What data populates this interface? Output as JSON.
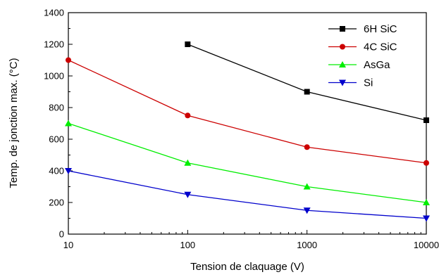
{
  "chart_data": {
    "type": "line",
    "title": "",
    "xlabel": "Tension de claquage (V)",
    "ylabel": "Temp. de jonction max. (°C)",
    "x_scale": "log",
    "x": [
      10,
      100,
      1000,
      10000
    ],
    "x_tick_labels": [
      "10",
      "100",
      "1000",
      "10000"
    ],
    "xlim": [
      10,
      10000
    ],
    "ylim": [
      0,
      1400
    ],
    "y_ticks": [
      0,
      200,
      400,
      600,
      800,
      1000,
      1200,
      1400
    ],
    "y_tick_labels": [
      "0",
      "200",
      "400",
      "600",
      "800",
      "1000",
      "1200",
      "1400"
    ],
    "grid": false,
    "legend_position": "top-right",
    "series": [
      {
        "name": "6H SiC",
        "color": "#000000",
        "marker": "square",
        "x": [
          100,
          1000,
          10000
        ],
        "values": [
          1200,
          900,
          720
        ]
      },
      {
        "name": "4C SiC",
        "color": "#cc0000",
        "marker": "circle",
        "x": [
          10,
          100,
          1000,
          10000
        ],
        "values": [
          1100,
          750,
          550,
          450
        ]
      },
      {
        "name": "AsGa",
        "color": "#00ee00",
        "marker": "triangle-up",
        "x": [
          10,
          100,
          1000,
          10000
        ],
        "values": [
          700,
          450,
          300,
          200
        ]
      },
      {
        "name": "Si",
        "color": "#0000cc",
        "marker": "triangle-down",
        "x": [
          10,
          100,
          1000,
          10000
        ],
        "values": [
          400,
          250,
          150,
          100
        ]
      }
    ]
  }
}
